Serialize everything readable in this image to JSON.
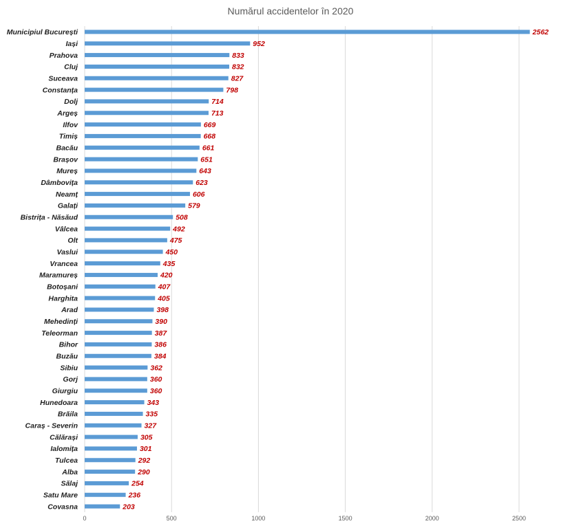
{
  "chart_data": {
    "type": "bar",
    "orientation": "horizontal",
    "title": "Numărul accidentelor în 2020",
    "xlabel": "",
    "ylabel": "",
    "xlim": [
      0,
      2500
    ],
    "xticks": [
      0,
      500,
      1000,
      1500,
      2000,
      2500
    ],
    "grid": true,
    "legend": "none",
    "bar_color": "#5b9bd5",
    "label_color": "#c00000",
    "categories": [
      "Municipiul București",
      "Iași",
      "Prahova",
      "Cluj",
      "Suceava",
      "Constanța",
      "Dolj",
      "Argeș",
      "Ilfov",
      "Timiș",
      "Bacău",
      "Brașov",
      "Mureș",
      "Dâmbovița",
      "Neamț",
      "Galați",
      "Bistrița - Năsăud",
      "Vâlcea",
      "Olt",
      "Vaslui",
      "Vrancea",
      "Maramureș",
      "Botoșani",
      "Harghita",
      "Arad",
      "Mehedinți",
      "Teleorman",
      "Bihor",
      "Buzău",
      "Sibiu",
      "Gorj",
      "Giurgiu",
      "Hunedoara",
      "Brăila",
      "Caraș - Severin",
      "Călărași",
      "Ialomița",
      "Tulcea",
      "Alba",
      "Sălaj",
      "Satu Mare",
      "Covasna"
    ],
    "values": [
      2562,
      952,
      833,
      832,
      827,
      798,
      714,
      713,
      669,
      668,
      661,
      651,
      643,
      623,
      606,
      579,
      508,
      492,
      475,
      450,
      435,
      420,
      407,
      405,
      398,
      390,
      387,
      386,
      384,
      362,
      360,
      360,
      343,
      335,
      327,
      305,
      301,
      292,
      290,
      254,
      236,
      203
    ]
  }
}
